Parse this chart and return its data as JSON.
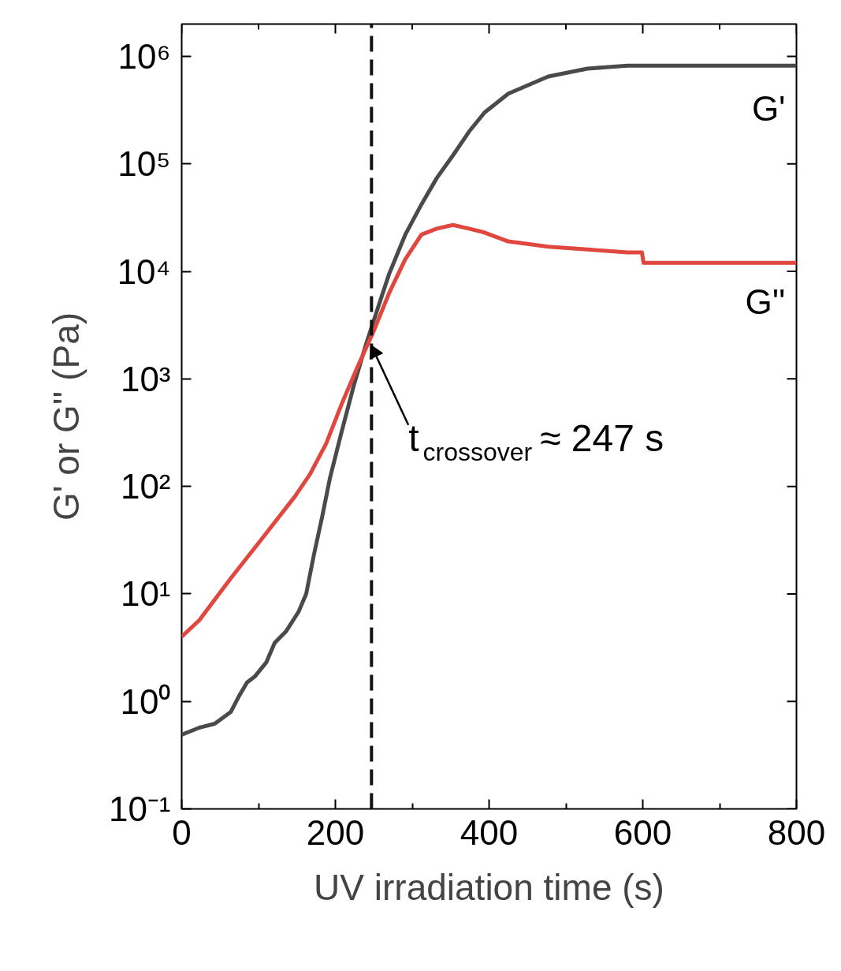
{
  "chart_data": {
    "type": "line",
    "xlabel": "UV irradiation time (s)",
    "ylabel": "G' or G'' (Pa)",
    "log": "y",
    "xlim": [
      0,
      800
    ],
    "ylim": [
      0.1,
      2000000
    ],
    "xticks": [
      0,
      {
        "value": 100,
        "label": null
      },
      200,
      {
        "value": 300,
        "label": null
      },
      400,
      {
        "value": 500,
        "label": null
      },
      600,
      {
        "value": 700,
        "label": null
      },
      800
    ],
    "yticks": [
      {
        "value": 0.1,
        "label": "10⁻¹"
      },
      {
        "value": 1,
        "label": "10⁰"
      },
      {
        "value": 10,
        "label": "10¹"
      },
      {
        "value": 100,
        "label": "10²"
      },
      {
        "value": 1000,
        "label": "10³"
      },
      {
        "value": 10000,
        "label": "10⁴"
      },
      {
        "value": 100000,
        "label": "10⁵"
      },
      {
        "value": 1000000,
        "label": "10⁶"
      }
    ],
    "grid": false,
    "marker": "none",
    "line_style": "solid",
    "ref_lines": [
      {
        "axis": "x",
        "value": 247,
        "color": "#111111",
        "line_style": "dashed"
      }
    ],
    "annotations": [
      {
        "text": "t$_{crossover}$ ≈ 247 s",
        "x": 247,
        "y": 2000
      }
    ],
    "series": [
      {
        "name": "G'",
        "color": "#4a4a4a",
        "x": [
          0,
          23,
          43,
          64,
          74,
          85,
          95,
          110,
          121,
          136,
          152,
          162,
          172,
          183,
          193,
          208,
          224,
          239,
          255,
          270,
          291,
          312,
          332,
          353,
          374,
          394,
          425,
          477,
          528,
          580,
          611,
          683,
          800
        ],
        "values": [
          0.49,
          0.57,
          0.62,
          0.8,
          1.1,
          1.5,
          1.7,
          2.3,
          3.5,
          4.5,
          6.8,
          10,
          23,
          53,
          120,
          320,
          870,
          2000,
          4500,
          9500,
          22000,
          42000,
          74000,
          120000,
          200000,
          300000,
          450000,
          650000,
          770000,
          820000,
          820000,
          820000,
          820000
        ]
      },
      {
        "name": "G''",
        "color": "#e0473e",
        "x": [
          0,
          23,
          64,
          105,
          147,
          167,
          188,
          208,
          229,
          250,
          270,
          291,
          312,
          332,
          353,
          374,
          394,
          425,
          477,
          528,
          580,
          599,
          601,
          632,
          683,
          800
        ],
        "values": [
          4,
          5.7,
          14,
          33,
          80,
          130,
          250,
          580,
          1300,
          2800,
          6300,
          13000,
          22000,
          25000,
          27000,
          25000,
          23000,
          19000,
          17000,
          16000,
          15000,
          15000,
          12000,
          12000,
          12000,
          12000
        ]
      }
    ]
  }
}
